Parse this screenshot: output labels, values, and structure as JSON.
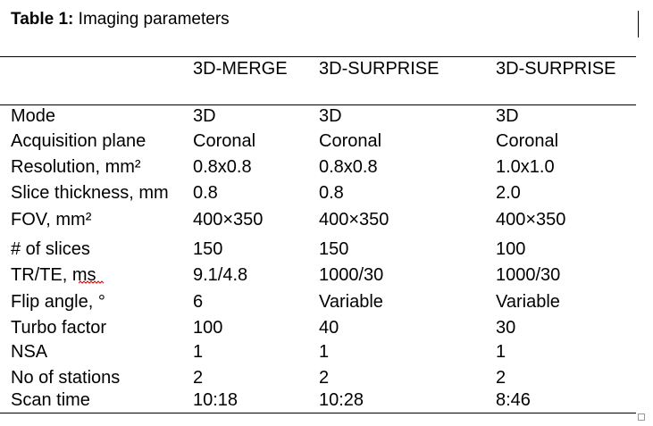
{
  "title": {
    "label": "Table 1:",
    "text": "Imaging parameters"
  },
  "table": {
    "columns": [
      "3D-MERGE",
      "3D-SURPRISE",
      "3D-SURPRISE"
    ],
    "rows": [
      [
        "Mode",
        "3D",
        "3D",
        "3D"
      ],
      [
        "Acquisition plane",
        "Coronal",
        "Coronal",
        "Coronal"
      ],
      [
        "Resolution, mm²",
        "0.8x0.8",
        "0.8x0.8",
        "1.0x1.0"
      ],
      [
        "Slice thickness, mm",
        "0.8",
        "0.8",
        "2.0"
      ],
      [
        "FOV, mm²",
        "400×350",
        "400×350",
        "400×350"
      ],
      [
        "# of slices",
        "150",
        "150",
        "100"
      ],
      [
        "TR/TE, ms",
        "9.1/4.8",
        "1000/30",
        "1000/30"
      ],
      [
        "Flip angle, °",
        "6",
        "Variable",
        "Variable"
      ],
      [
        "Turbo factor",
        "100",
        "40",
        "30"
      ],
      [
        "NSA",
        "1",
        "1",
        "1"
      ],
      [
        "No of stations",
        "2",
        "2",
        "2"
      ],
      [
        "Scan time",
        "10:18",
        "10:28",
        "8:46"
      ]
    ]
  }
}
